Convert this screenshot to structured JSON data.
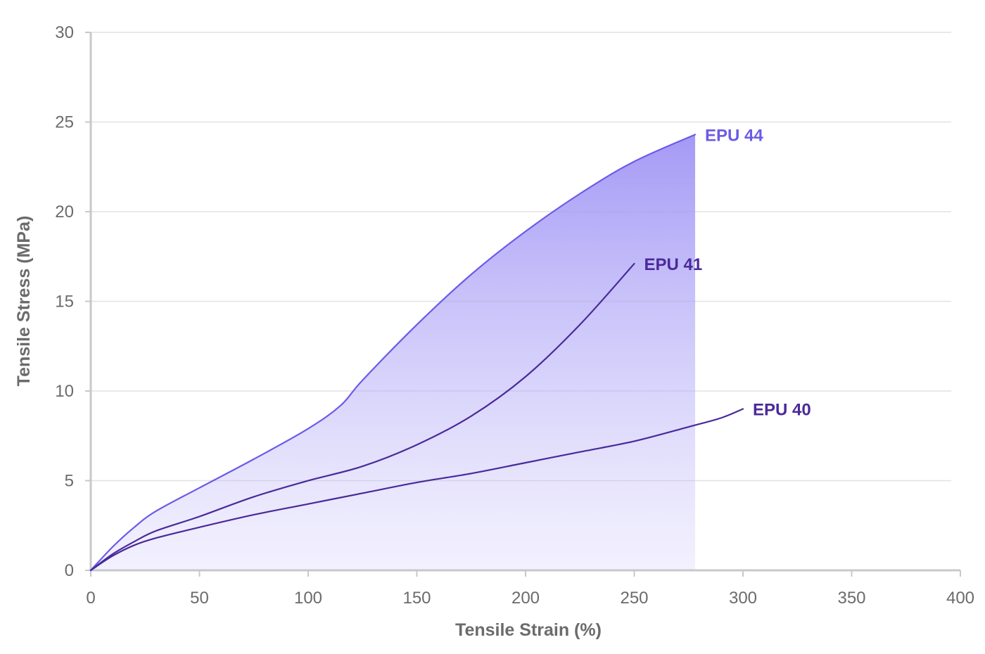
{
  "chart_data": {
    "type": "line",
    "title": "",
    "xlabel": "Tensile Strain (%)",
    "ylabel": "Tensile Stress (MPa)",
    "xlim": [
      0,
      400
    ],
    "ylim": [
      0,
      30
    ],
    "x_ticks": [
      0,
      50,
      100,
      150,
      200,
      250,
      300,
      350,
      400
    ],
    "y_ticks": [
      0,
      5,
      10,
      15,
      20,
      25,
      30
    ],
    "grid": "horizontal",
    "series": [
      {
        "name": "EPU 44",
        "color": "#6b5be8",
        "fill": true,
        "points": [
          [
            0,
            0
          ],
          [
            10,
            1.3
          ],
          [
            20,
            2.4
          ],
          [
            30,
            3.3
          ],
          [
            50,
            4.6
          ],
          [
            75,
            6.2
          ],
          [
            100,
            7.9
          ],
          [
            115,
            9.2
          ],
          [
            125,
            10.6
          ],
          [
            150,
            13.7
          ],
          [
            175,
            16.5
          ],
          [
            200,
            18.9
          ],
          [
            225,
            21.0
          ],
          [
            250,
            22.8
          ],
          [
            278,
            24.3
          ]
        ]
      },
      {
        "name": "EPU 41",
        "color": "#4a2a9a",
        "fill": false,
        "points": [
          [
            0,
            0
          ],
          [
            10,
            0.9
          ],
          [
            20,
            1.6
          ],
          [
            30,
            2.2
          ],
          [
            50,
            3.0
          ],
          [
            75,
            4.1
          ],
          [
            100,
            5.0
          ],
          [
            125,
            5.8
          ],
          [
            150,
            7.0
          ],
          [
            175,
            8.6
          ],
          [
            200,
            10.8
          ],
          [
            225,
            13.7
          ],
          [
            250,
            17.1
          ]
        ]
      },
      {
        "name": "EPU 40",
        "color": "#4a2a9a",
        "fill": false,
        "points": [
          [
            0,
            0
          ],
          [
            10,
            0.8
          ],
          [
            20,
            1.4
          ],
          [
            30,
            1.8
          ],
          [
            50,
            2.4
          ],
          [
            75,
            3.1
          ],
          [
            100,
            3.7
          ],
          [
            125,
            4.3
          ],
          [
            150,
            4.9
          ],
          [
            175,
            5.4
          ],
          [
            200,
            6.0
          ],
          [
            225,
            6.6
          ],
          [
            250,
            7.2
          ],
          [
            275,
            8.0
          ],
          [
            290,
            8.5
          ],
          [
            300,
            9.0
          ]
        ]
      }
    ]
  }
}
